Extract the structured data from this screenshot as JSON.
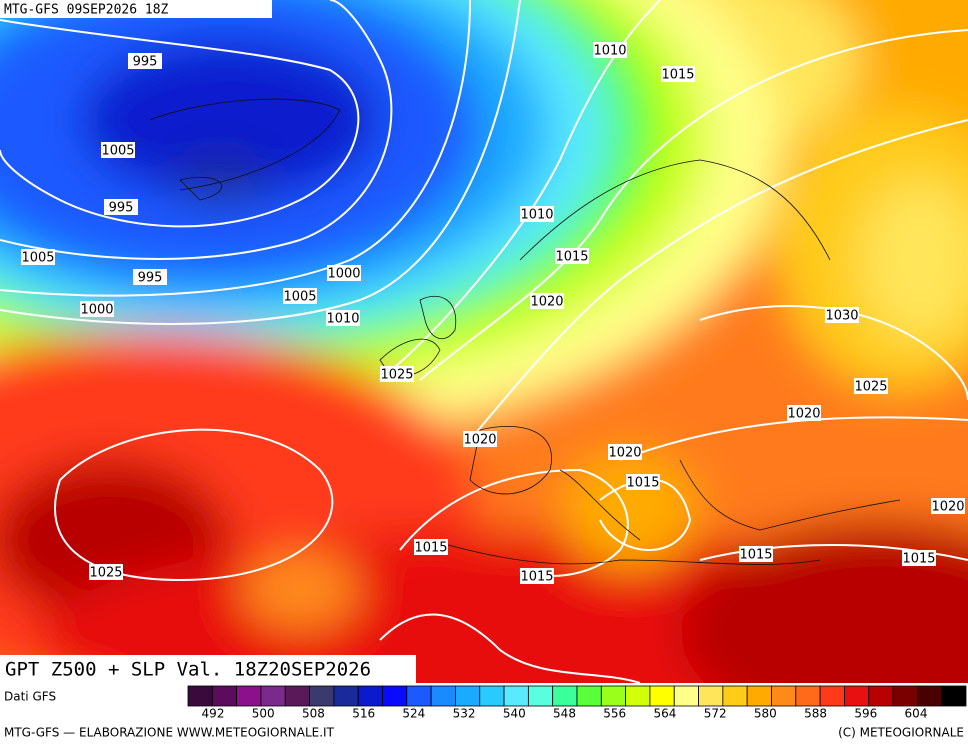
{
  "header": {
    "run": "MTG-GFS 09SEP2026 18Z"
  },
  "title": "GPT Z500 + SLP Val. 18Z20SEP2026",
  "source": "Dati GFS",
  "isobar_labels": [
    995,
    1010,
    1015,
    1005,
    995,
    1010,
    1015,
    1005,
    995,
    1000,
    1005,
    1020,
    1000,
    1010,
    1030,
    1025,
    1025,
    1020,
    1020,
    1020,
    1015,
    1020,
    1015,
    1015,
    1015,
    1025,
    1015
  ],
  "colorbar": {
    "colors": [
      "#3a0a3c",
      "#5c0c5c",
      "#8c108c",
      "#7a2a8a",
      "#5a1a5a",
      "#3a3a6e",
      "#1a2a9a",
      "#0a1acd",
      "#0a0aff",
      "#1a5aff",
      "#1a8aff",
      "#1aaaff",
      "#2acaff",
      "#5aeaff",
      "#5affe0",
      "#3aff9a",
      "#5aff3a",
      "#9aff1a",
      "#d2ff0a",
      "#ffff00",
      "#ffff8a",
      "#ffe55a",
      "#ffcc1a",
      "#ffaa00",
      "#ff8a1a",
      "#ff6a1a",
      "#ff3a1a",
      "#e81010",
      "#b80000",
      "#7a0000",
      "#4a0000",
      "#000000"
    ],
    "ticks": [
      492,
      500,
      508,
      516,
      524,
      532,
      540,
      548,
      556,
      564,
      572,
      580,
      588,
      596,
      604
    ]
  },
  "footer": {
    "left": "MTG-GFS — ELABORAZIONE WWW.METEOGIORNALE.IT",
    "right": "(C) METEOGIORNALE"
  }
}
